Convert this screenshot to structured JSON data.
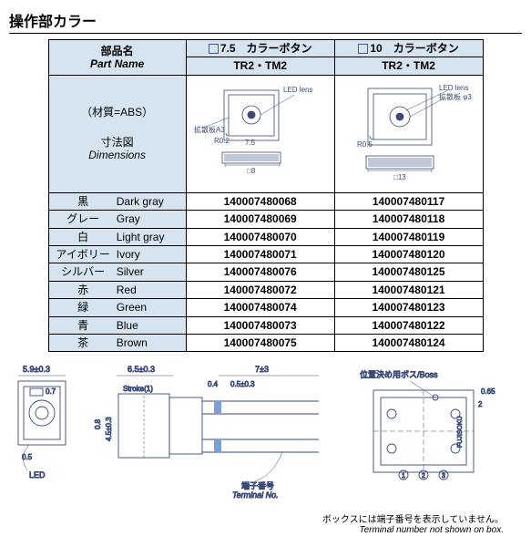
{
  "title": "操作部カラー",
  "table": {
    "part_name_header": {
      "jp": "部品名",
      "en": "Part Name"
    },
    "col1": {
      "header": "7.5　カラーボタン",
      "sub": "TR2・TM2"
    },
    "col2": {
      "header": "10　カラーボタン",
      "sub": "TR2・TM2"
    },
    "material_note": "（材質=ABS）",
    "dimensions_label": {
      "jp": "寸法図",
      "en": "Dimensions"
    },
    "rows": [
      {
        "jp": "黒",
        "en": "Dark gray",
        "c1": "140007480068",
        "c2": "140007480117"
      },
      {
        "jp": "グレー",
        "en": "Gray",
        "c1": "140007480069",
        "c2": "140007480118"
      },
      {
        "jp": "白",
        "en": "Light gray",
        "c1": "140007480070",
        "c2": "140007480119"
      },
      {
        "jp": "アイボリー",
        "en": "Ivory",
        "c1": "140007480071",
        "c2": "140007480120"
      },
      {
        "jp": "シルバー",
        "en": "Silver",
        "c1": "140007480076",
        "c2": "140007480125"
      },
      {
        "jp": "赤",
        "en": "Red",
        "c1": "140007480072",
        "c2": "140007480121"
      },
      {
        "jp": "緑",
        "en": "Green",
        "c1": "140007480074",
        "c2": "140007480123"
      },
      {
        "jp": "青",
        "en": "Blue",
        "c1": "140007480073",
        "c2": "140007480122"
      },
      {
        "jp": "茶",
        "en": "Brown",
        "c1": "140007480075",
        "c2": "140007480124"
      }
    ],
    "draw1": {
      "led_lens": "LED lens",
      "diffuser": "拡散板A3",
      "radius": "R0.2",
      "width": "7.5",
      "sq": "□8"
    },
    "draw2": {
      "led_lens": "LED lens",
      "diffuser": "拡散板 φ3",
      "radius": "R0.5",
      "sq": "□13"
    }
  },
  "bottom_drawing": {
    "dim_5_9": "5.9±0.3",
    "dim_0_7": "0.7",
    "dim_0_5": "0.5",
    "led": "LED",
    "dim_6_5": "6.5±0.3",
    "stroke": "Stroke(1)",
    "dim_7_3": "7±3",
    "dim_0_4": "0.4",
    "dim_0_5pm": "0.5±0.3",
    "dim_08": "0.8",
    "dim_4_5": "4.5±0.3",
    "terminal": "端子番号\nTerminal No.",
    "boss": "位置決め用ボス/Boss",
    "dim_0_65": "0.65",
    "dim_2": "2",
    "fujisoku": "FUJISOKU"
  },
  "footnote": {
    "jp": "ボックスには端子番号を表示していません。",
    "en": "Terminal number not shown on box."
  },
  "colors": {
    "line": "#3a4a7a",
    "header_bg": "#d6e4ef"
  }
}
